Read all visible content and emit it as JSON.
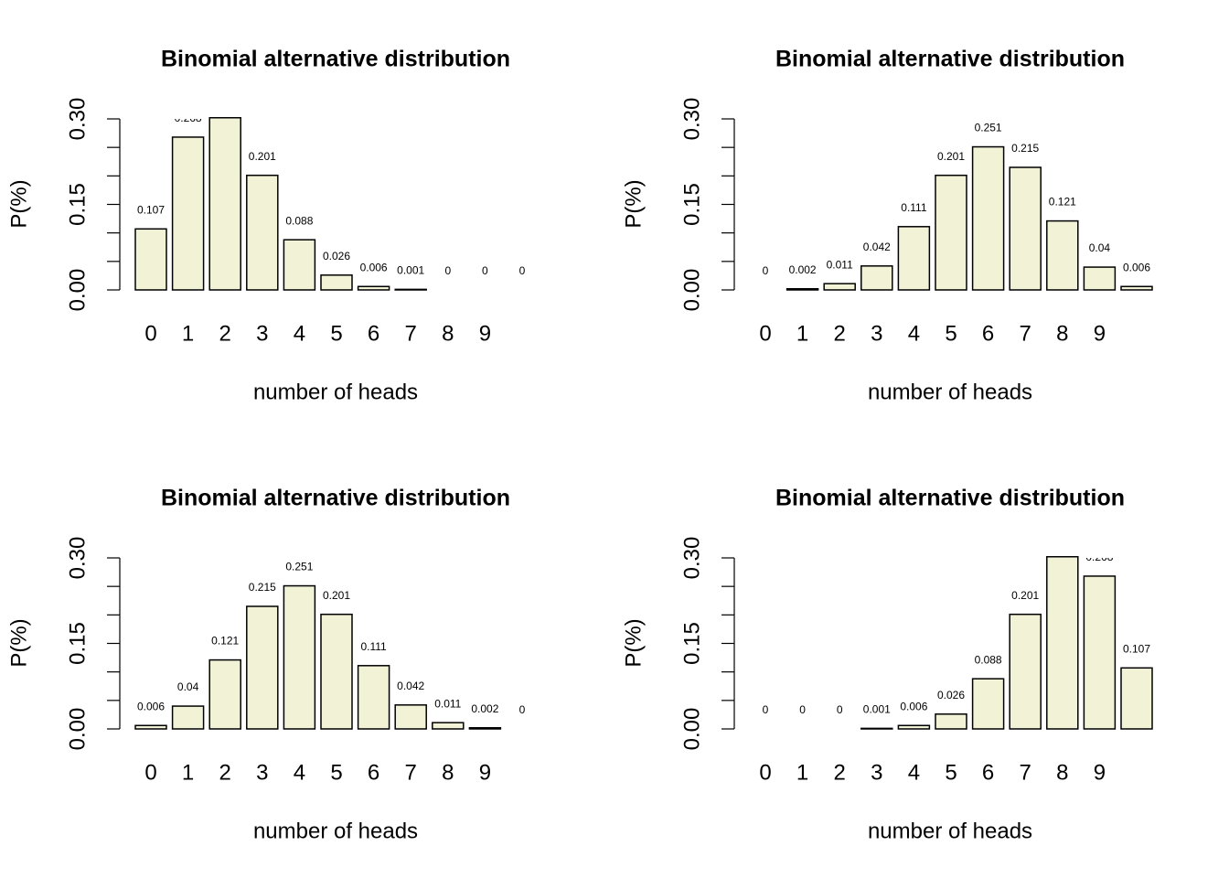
{
  "chart_data": [
    {
      "type": "bar",
      "title": "Binomial alternative distribution",
      "xlabel": "number of heads",
      "ylabel": "P(%)",
      "categories": [
        "0",
        "1",
        "2",
        "3",
        "4",
        "5",
        "6",
        "7",
        "8",
        "9",
        null
      ],
      "values": [
        0.107,
        0.268,
        0.302,
        0.201,
        0.088,
        0.026,
        0.006,
        0.001,
        0,
        0,
        0
      ],
      "color": "#f2f2d7",
      "ylim": [
        0,
        0.3
      ],
      "yticks": [
        {
          "value": 0,
          "label": "0.00"
        },
        {
          "value": 0.15,
          "label": "0.15"
        },
        {
          "value": 0.3,
          "label": "0.30"
        }
      ],
      "yminor_ticks": [
        0.05,
        0.1,
        0.2,
        0.25
      ]
    },
    {
      "type": "bar",
      "title": "Binomial alternative distribution",
      "xlabel": "number of heads",
      "ylabel": "P(%)",
      "categories": [
        "0",
        "1",
        "2",
        "3",
        "4",
        "5",
        "6",
        "7",
        "8",
        "9",
        null
      ],
      "values": [
        0,
        0.002,
        0.011,
        0.042,
        0.111,
        0.201,
        0.251,
        0.215,
        0.121,
        0.04,
        0.006
      ],
      "color": "#f2f2d7",
      "ylim": [
        0,
        0.3
      ],
      "yticks": [
        {
          "value": 0,
          "label": "0.00"
        },
        {
          "value": 0.15,
          "label": "0.15"
        },
        {
          "value": 0.3,
          "label": "0.30"
        }
      ],
      "yminor_ticks": [
        0.05,
        0.1,
        0.2,
        0.25
      ]
    },
    {
      "type": "bar",
      "title": "Binomial alternative distribution",
      "xlabel": "number of heads",
      "ylabel": "P(%)",
      "categories": [
        "0",
        "1",
        "2",
        "3",
        "4",
        "5",
        "6",
        "7",
        "8",
        "9",
        null
      ],
      "values": [
        0.006,
        0.04,
        0.121,
        0.215,
        0.251,
        0.201,
        0.111,
        0.042,
        0.011,
        0.002,
        0
      ],
      "color": "#f2f2d7",
      "ylim": [
        0,
        0.3
      ],
      "yticks": [
        {
          "value": 0,
          "label": "0.00"
        },
        {
          "value": 0.15,
          "label": "0.15"
        },
        {
          "value": 0.3,
          "label": "0.30"
        }
      ],
      "yminor_ticks": [
        0.05,
        0.1,
        0.2,
        0.25
      ]
    },
    {
      "type": "bar",
      "title": "Binomial alternative distribution",
      "xlabel": "number of heads",
      "ylabel": "P(%)",
      "categories": [
        "0",
        "1",
        "2",
        "3",
        "4",
        "5",
        "6",
        "7",
        "8",
        "9",
        null
      ],
      "values": [
        0,
        0,
        0,
        0.001,
        0.006,
        0.026,
        0.088,
        0.201,
        0.302,
        0.268,
        0.107
      ],
      "color": "#f2f2d7",
      "ylim": [
        0,
        0.3
      ],
      "yticks": [
        {
          "value": 0,
          "label": "0.00"
        },
        {
          "value": 0.15,
          "label": "0.15"
        },
        {
          "value": 0.3,
          "label": "0.30"
        }
      ],
      "yminor_ticks": [
        0.05,
        0.1,
        0.2,
        0.25
      ]
    }
  ]
}
